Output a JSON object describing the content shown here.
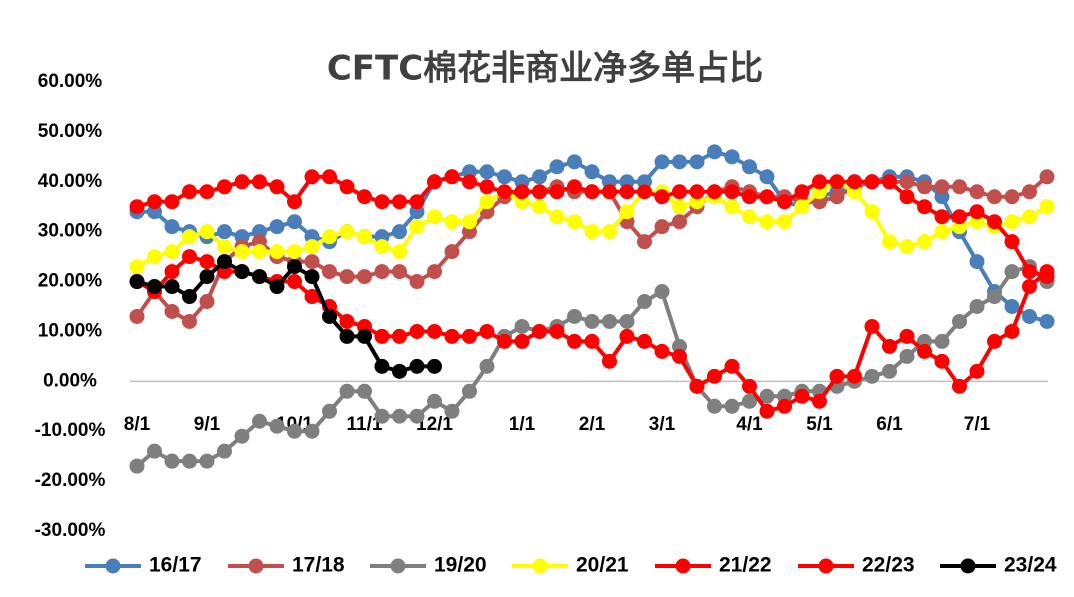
{
  "chart_data": {
    "type": "line",
    "title": "CFTC棉花非商业净多单占比",
    "categories": [
      "8/1",
      null,
      null,
      null,
      "9/1",
      null,
      null,
      null,
      null,
      "10/1",
      null,
      null,
      null,
      "11/1",
      null,
      null,
      null,
      "12/1",
      null,
      null,
      null,
      null,
      "1/1",
      null,
      null,
      null,
      "2/1",
      null,
      null,
      null,
      "3/1",
      null,
      null,
      null,
      null,
      "4/1",
      null,
      null,
      null,
      "5/1",
      null,
      null,
      null,
      "6/1",
      null,
      null,
      null,
      null,
      "7/1",
      null,
      null,
      null,
      null
    ],
    "ylim": [
      -30,
      60
    ],
    "yticks": [
      {
        "value": -30,
        "label": "-30.00%"
      },
      {
        "value": -20,
        "label": "-20.00%"
      },
      {
        "value": -10,
        "label": "-10.00%"
      },
      {
        "value": 0,
        "label": "0.00%"
      },
      {
        "value": 10,
        "label": "10.00%"
      },
      {
        "value": 20,
        "label": "20.00%"
      },
      {
        "value": 30,
        "label": "30.00%"
      },
      {
        "value": 40,
        "label": "40.00%"
      },
      {
        "value": 50,
        "label": "50.00%"
      },
      {
        "value": 60,
        "label": "60.00%"
      }
    ],
    "grid": false,
    "legend": "bottom",
    "series": [
      {
        "name": "16/17",
        "color": "#4a7ebb",
        "values": [
          34,
          34,
          31,
          30,
          29,
          30,
          29,
          30,
          31,
          32,
          29,
          28,
          30,
          29,
          29,
          30,
          34,
          40,
          41,
          42,
          42,
          41,
          40,
          41,
          43,
          44,
          42,
          40,
          40,
          40,
          44,
          44,
          44,
          46,
          45,
          43,
          41,
          36,
          35,
          37,
          38,
          40,
          40,
          41,
          41,
          40,
          37,
          30,
          24,
          18,
          15,
          13,
          12
        ]
      },
      {
        "name": "17/18",
        "color": "#c0504d",
        "values": [
          13,
          18,
          14,
          12,
          16,
          24,
          27,
          28,
          25,
          24,
          24,
          22,
          21,
          21,
          22,
          22,
          20,
          22,
          26,
          30,
          34,
          37,
          38,
          38,
          39,
          38,
          38,
          38,
          32,
          28,
          31,
          32,
          35,
          38,
          39,
          38,
          37,
          37,
          36,
          36,
          37,
          39,
          40,
          40,
          40,
          39,
          39,
          39,
          38,
          37,
          37,
          38,
          41
        ]
      },
      {
        "name": "19/20",
        "color": "#7f7f7f",
        "values": [
          -17,
          -14,
          -16,
          -16,
          -16,
          -14,
          -11,
          -8,
          -9,
          -10,
          -10,
          -6,
          -2,
          -2,
          -7,
          -7,
          -7,
          -4,
          -6,
          -2,
          3,
          9,
          11,
          10,
          11,
          13,
          12,
          12,
          12,
          16,
          18,
          7,
          -1,
          -5,
          -5,
          -4,
          -3,
          -3,
          -2,
          -2,
          -1,
          0,
          1,
          2,
          5,
          8,
          8,
          12,
          15,
          17,
          22,
          23,
          20
        ]
      },
      {
        "name": "20/21",
        "color": "#ffff00",
        "values": [
          23,
          25,
          26,
          29,
          30,
          27,
          26,
          26,
          26,
          26,
          27,
          29,
          30,
          29,
          27,
          26,
          31,
          33,
          32,
          32,
          36,
          38,
          36,
          35,
          33,
          32,
          30,
          30,
          34,
          38,
          38,
          35,
          36,
          37,
          35,
          33,
          32,
          32,
          35,
          38,
          40,
          38,
          34,
          28,
          27,
          28,
          30,
          31,
          32,
          31,
          32,
          33,
          35
        ]
      },
      {
        "name": "21/22",
        "color": "#ff0000",
        "values": [
          35,
          36,
          36,
          38,
          38,
          39,
          40,
          40,
          39,
          36,
          41,
          41,
          39,
          37,
          36,
          36,
          36,
          40,
          41,
          40,
          39,
          38,
          38,
          38,
          38,
          39,
          38,
          38,
          38,
          38,
          37,
          38,
          38,
          38,
          38,
          37,
          37,
          36,
          38,
          40,
          40,
          40,
          40,
          40,
          37,
          35,
          33,
          33,
          34,
          32,
          28,
          22,
          21
        ]
      },
      {
        "name": "22/23",
        "color": "#ff0000",
        "values": [
          20,
          18,
          22,
          25,
          24,
          22,
          22,
          21,
          20,
          20,
          17,
          15,
          12,
          11,
          9,
          9,
          10,
          10,
          9,
          9,
          10,
          8,
          8,
          10,
          10,
          8,
          8,
          4,
          9,
          8,
          6,
          5,
          -1,
          1,
          3,
          -1,
          -6,
          -5,
          -3,
          -4,
          1,
          1,
          11,
          7,
          9,
          6,
          4,
          -1,
          2,
          8,
          10,
          19,
          22
        ]
      },
      {
        "name": "23/24",
        "color": "#000000",
        "values": [
          20,
          19,
          19,
          17,
          21,
          24,
          22,
          21,
          19,
          23,
          21,
          13,
          9,
          9,
          3,
          2,
          3,
          3,
          null,
          null,
          null,
          null,
          null,
          null,
          null,
          null,
          null,
          null,
          null,
          null,
          null,
          null,
          null,
          null,
          null,
          null,
          null,
          null,
          null,
          null,
          null,
          null,
          null,
          null,
          null,
          null,
          null,
          null,
          null,
          null,
          null,
          null,
          null
        ]
      }
    ]
  }
}
